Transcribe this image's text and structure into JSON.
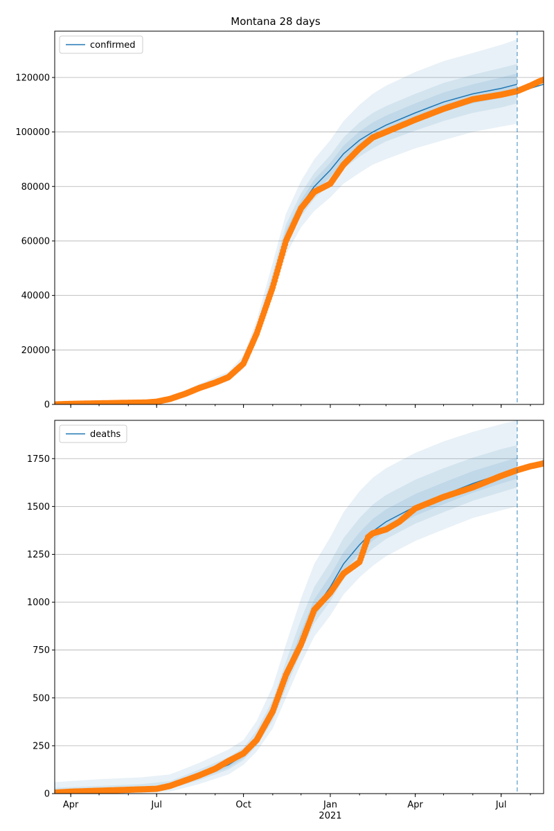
{
  "figure": {
    "title": "Montana 28 days"
  },
  "colors": {
    "model": "#1f77b4",
    "observed": "#ff7f0e",
    "band": "#1f77b4",
    "grid": "#b0b0b0",
    "vline": "#1f77b4"
  },
  "x_axis": {
    "start": "2020-03-15",
    "end": "2021-08-15",
    "ticks": [
      {
        "date": "2020-04-01",
        "label": "Apr"
      },
      {
        "date": "2020-07-01",
        "label": "Jul"
      },
      {
        "date": "2020-10-01",
        "label": "Oct"
      },
      {
        "date": "2021-01-01",
        "label": "Jan",
        "sublabel": "2021"
      },
      {
        "date": "2021-04-01",
        "label": "Apr"
      },
      {
        "date": "2021-07-01",
        "label": "Jul"
      }
    ],
    "forecast_date": "2021-07-18"
  },
  "chart_data": [
    {
      "type": "line",
      "name": "confirmed",
      "legend": "top-left",
      "grid": true,
      "ylim": [
        0,
        137000
      ],
      "yticks": [
        0,
        20000,
        40000,
        60000,
        80000,
        100000,
        120000
      ],
      "ytick_labels": [
        "0",
        "20000",
        "40000",
        "60000",
        "80000",
        "100000",
        "120000"
      ],
      "model": {
        "x": [
          "2020-03-15",
          "2020-05-01",
          "2020-06-15",
          "2020-07-15",
          "2020-08-15",
          "2020-09-15",
          "2020-10-01",
          "2020-10-15",
          "2020-11-01",
          "2020-11-15",
          "2020-12-01",
          "2020-12-15",
          "2021-01-01",
          "2021-01-15",
          "2021-02-01",
          "2021-02-15",
          "2021-03-01",
          "2021-04-01",
          "2021-05-01",
          "2021-06-01",
          "2021-07-01",
          "2021-07-18"
        ],
        "y": [
          0,
          200,
          600,
          2000,
          6000,
          10000,
          15000,
          27000,
          45000,
          62000,
          73000,
          80000,
          86000,
          92000,
          97000,
          100000,
          102500,
          107000,
          111000,
          114000,
          116000,
          117500
        ]
      },
      "bands": [
        {
          "lower": [
            0,
            150,
            450,
            1500,
            5000,
            8500,
            13000,
            24000,
            40000,
            55000,
            65000,
            71000,
            76000,
            81000,
            85000,
            88000,
            90000,
            94000,
            97000,
            100000,
            102000,
            103000
          ],
          "upper": [
            0,
            300,
            800,
            2600,
            7500,
            12000,
            18000,
            31000,
            52000,
            70000,
            82000,
            90000,
            97000,
            104000,
            110000,
            114000,
            117000,
            122000,
            126000,
            129000,
            132000,
            134000
          ]
        },
        {
          "lower": [
            0,
            180,
            520,
            1700,
            5500,
            9200,
            14000,
            25500,
            42500,
            58500,
            69000,
            75500,
            81000,
            86500,
            91000,
            94000,
            96500,
            100500,
            104000,
            107000,
            109000,
            110500
          ],
          "upper": [
            0,
            250,
            700,
            2300,
            6800,
            11000,
            16500,
            29000,
            48500,
            66000,
            77500,
            85000,
            91500,
            98000,
            103500,
            107000,
            109500,
            114000,
            118000,
            121000,
            123500,
            125000
          ]
        },
        {
          "lower": [
            0,
            190,
            560,
            1850,
            5750,
            9600,
            14500,
            26200,
            43700,
            60200,
            71000,
            77700,
            83500,
            89200,
            94000,
            97000,
            99500,
            103700,
            107500,
            110500,
            112500,
            114000
          ],
          "upper": [
            0,
            220,
            650,
            2150,
            6400,
            10500,
            15700,
            28000,
            46800,
            64000,
            75000,
            82500,
            88700,
            95000,
            100200,
            103500,
            106000,
            110500,
            114500,
            117500,
            120000,
            121500
          ]
        }
      ],
      "observed": {
        "x": [
          "2020-03-15",
          "2020-04-01",
          "2020-05-01",
          "2020-06-01",
          "2020-06-20",
          "2020-07-01",
          "2020-07-15",
          "2020-08-01",
          "2020-08-15",
          "2020-09-01",
          "2020-09-15",
          "2020-10-01",
          "2020-10-15",
          "2020-11-01",
          "2020-11-15",
          "2020-12-01",
          "2020-12-15",
          "2021-01-01",
          "2021-01-15",
          "2021-02-01",
          "2021-02-15",
          "2021-03-01",
          "2021-04-01",
          "2021-05-01",
          "2021-06-01",
          "2021-07-01",
          "2021-07-18",
          "2021-08-01",
          "2021-08-10",
          "2021-08-15"
        ],
        "y": [
          0,
          200,
          400,
          600,
          700,
          1000,
          2000,
          4000,
          6000,
          8000,
          10000,
          15000,
          26000,
          43000,
          60000,
          72000,
          78000,
          81000,
          88000,
          94000,
          98000,
          100000,
          104500,
          108500,
          112000,
          113700,
          115000,
          117000,
          118500,
          119200
        ]
      },
      "projection": {
        "x": [
          "2021-07-18",
          "2021-08-01",
          "2021-08-15"
        ],
        "y": [
          115000,
          116000,
          117500
        ]
      }
    },
    {
      "type": "line",
      "name": "deaths",
      "legend": "top-left",
      "grid": true,
      "ylim": [
        0,
        1950
      ],
      "yticks": [
        0,
        250,
        500,
        750,
        1000,
        1250,
        1500,
        1750
      ],
      "ytick_labels": [
        "0",
        "250",
        "500",
        "750",
        "1000",
        "1250",
        "1500",
        "1750"
      ],
      "model": {
        "x": [
          "2020-03-15",
          "2020-05-01",
          "2020-06-15",
          "2020-07-15",
          "2020-08-15",
          "2020-09-15",
          "2020-10-01",
          "2020-10-15",
          "2020-11-01",
          "2020-11-15",
          "2020-12-01",
          "2020-12-15",
          "2021-01-01",
          "2021-01-15",
          "2021-02-01",
          "2021-02-15",
          "2021-03-01",
          "2021-04-01",
          "2021-05-01",
          "2021-06-01",
          "2021-07-01",
          "2021-07-18"
        ],
        "y": [
          0,
          10,
          20,
          40,
          90,
          150,
          200,
          280,
          420,
          600,
          800,
          960,
          1080,
          1200,
          1300,
          1370,
          1420,
          1500,
          1560,
          1620,
          1670,
          1700
        ]
      },
      "bands": [
        {
          "lower": [
            0,
            0,
            2,
            10,
            50,
            100,
            150,
            220,
            340,
            500,
            680,
            820,
            930,
            1040,
            1130,
            1190,
            1240,
            1320,
            1380,
            1440,
            1480,
            1500
          ],
          "upper": [
            60,
            75,
            85,
            100,
            160,
            230,
            280,
            380,
            560,
            780,
            1020,
            1200,
            1340,
            1470,
            1580,
            1650,
            1700,
            1780,
            1840,
            1890,
            1930,
            1950
          ]
        },
        {
          "lower": [
            0,
            5,
            12,
            25,
            70,
            125,
            175,
            250,
            380,
            550,
            740,
            890,
            1005,
            1120,
            1215,
            1280,
            1330,
            1410,
            1470,
            1530,
            1575,
            1600
          ],
          "upper": [
            30,
            40,
            50,
            65,
            125,
            190,
            240,
            330,
            490,
            690,
            910,
            1080,
            1210,
            1335,
            1440,
            1510,
            1560,
            1640,
            1700,
            1755,
            1800,
            1820
          ]
        },
        {
          "lower": [
            0,
            7,
            15,
            30,
            80,
            135,
            185,
            262,
            398,
            572,
            768,
            922,
            1040,
            1158,
            1255,
            1322,
            1372,
            1452,
            1512,
            1572,
            1620,
            1645
          ],
          "upper": [
            15,
            20,
            28,
            50,
            105,
            170,
            220,
            305,
            455,
            640,
            850,
            1015,
            1140,
            1262,
            1365,
            1435,
            1485,
            1565,
            1625,
            1685,
            1730,
            1755
          ]
        }
      ],
      "observed": {
        "x": [
          "2020-03-15",
          "2020-04-01",
          "2020-05-01",
          "2020-06-01",
          "2020-07-01",
          "2020-07-15",
          "2020-08-01",
          "2020-08-15",
          "2020-09-01",
          "2020-09-15",
          "2020-10-01",
          "2020-10-15",
          "2020-11-01",
          "2020-11-15",
          "2020-12-01",
          "2020-12-15",
          "2021-01-01",
          "2021-01-15",
          "2021-02-01",
          "2021-02-10",
          "2021-02-15",
          "2021-03-01",
          "2021-03-15",
          "2021-04-01",
          "2021-05-01",
          "2021-06-01",
          "2021-07-01",
          "2021-07-18",
          "2021-08-01",
          "2021-08-15"
        ],
        "y": [
          5,
          10,
          15,
          20,
          25,
          40,
          70,
          95,
          130,
          170,
          210,
          280,
          430,
          620,
          780,
          960,
          1050,
          1150,
          1210,
          1340,
          1360,
          1380,
          1420,
          1490,
          1550,
          1600,
          1660,
          1690,
          1710,
          1725
        ]
      },
      "projection": {
        "x": [
          "2021-07-18",
          "2021-08-01",
          "2021-08-15"
        ],
        "y": [
          1690,
          1712,
          1740
        ]
      }
    }
  ]
}
